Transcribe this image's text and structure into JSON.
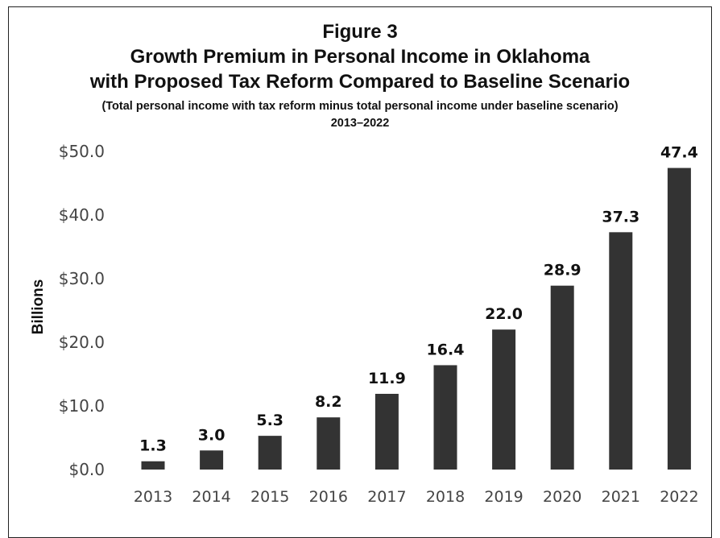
{
  "chart_data": {
    "type": "bar",
    "title": "Figure 3",
    "title_lines": [
      "Figure 3",
      "Growth Premium in Personal Income in Oklahoma",
      "with Proposed Tax Reform Compared to Baseline Scenario"
    ],
    "subtitle_lines": [
      "(Total personal income with tax reform minus total personal income under baseline scenario)",
      "2013–2022"
    ],
    "categories": [
      "2013",
      "2014",
      "2015",
      "2016",
      "2017",
      "2018",
      "2019",
      "2020",
      "2021",
      "2022"
    ],
    "values": [
      1.3,
      3.0,
      5.3,
      8.2,
      11.9,
      16.4,
      22.0,
      28.9,
      37.3,
      47.4
    ],
    "data_labels": [
      "1.3",
      "3.0",
      "5.3",
      "8.2",
      "11.9",
      "16.4",
      "22.0",
      "28.9",
      "37.3",
      "47.4"
    ],
    "xlabel": "",
    "ylabel": "Billions",
    "ylim": [
      0,
      50
    ],
    "yticks": [
      0,
      10,
      20,
      30,
      40,
      50
    ],
    "ytick_labels": [
      "$0.0",
      "$10.0",
      "$20.0",
      "$30.0",
      "$40.0",
      "$50.0"
    ],
    "grid": false,
    "legend": "none",
    "bar_color": "#333333"
  }
}
